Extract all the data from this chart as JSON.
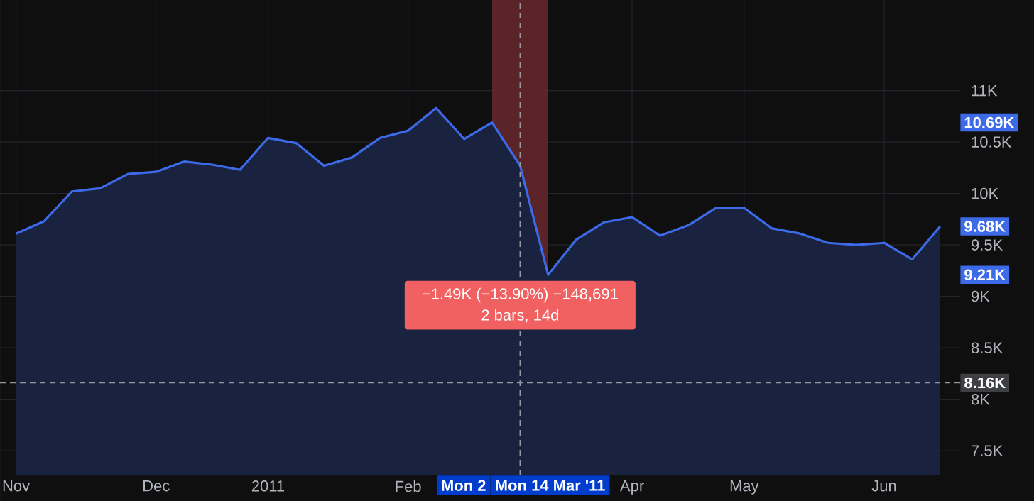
{
  "chart_data": {
    "type": "area",
    "x": [
      "2010-11-01",
      "2010-11-08",
      "2010-11-15",
      "2010-11-22",
      "2010-11-29",
      "2010-12-06",
      "2010-12-13",
      "2010-12-20",
      "2010-12-27",
      "2011-01-03",
      "2011-01-10",
      "2011-01-17",
      "2011-01-24",
      "2011-01-31",
      "2011-02-07",
      "2011-02-14",
      "2011-02-21",
      "2011-02-28",
      "2011-03-07",
      "2011-03-14",
      "2011-03-21",
      "2011-03-28",
      "2011-04-04",
      "2011-04-11",
      "2011-04-18",
      "2011-04-25",
      "2011-05-02",
      "2011-05-09",
      "2011-05-16",
      "2011-05-23",
      "2011-05-30",
      "2011-06-06",
      "2011-06-13",
      "2011-06-20"
    ],
    "series": [
      {
        "color": "#3d6ae8",
        "values": [
          9610,
          9730,
          10020,
          10050,
          10190,
          10210,
          10310,
          10280,
          10230,
          10540,
          10490,
          10270,
          10350,
          10540,
          10610,
          10830,
          10530,
          10690,
          10270,
          9210,
          9550,
          9720,
          9770,
          9590,
          9690,
          9860,
          9860,
          9660,
          9610,
          9520,
          9500,
          9520,
          9360,
          9680
        ]
      }
    ],
    "xlim": [
      "2010-10-28",
      "2011-06-25"
    ],
    "xticks": [
      {
        "value": "2010-11-01",
        "label": "Nov"
      },
      {
        "value": "2010-12-06",
        "label": "Dec"
      },
      {
        "value": "2011-01-03",
        "label": "2011"
      },
      {
        "value": "2011-02-07",
        "label": "Feb"
      },
      {
        "value": "2011-04-04",
        "label": "Apr"
      },
      {
        "value": "2011-05-02",
        "label": "May"
      },
      {
        "value": "2011-06-06",
        "label": "Jun"
      }
    ],
    "ylim": [
      7260,
      11880
    ],
    "yticks": [
      {
        "value": 7500,
        "label": "7.5K"
      },
      {
        "value": 8000,
        "label": "8K"
      },
      {
        "value": 8500,
        "label": "8.5K"
      },
      {
        "value": 9000,
        "label": "9K"
      },
      {
        "value": 9500,
        "label": "9.5K"
      },
      {
        "value": 10000,
        "label": "10K"
      },
      {
        "value": 10500,
        "label": "10.5K"
      },
      {
        "value": 11000,
        "label": "11K"
      }
    ],
    "grid": true,
    "bands": [
      {
        "axis": "x",
        "from": "2011-02-28",
        "to": "2011-03-14",
        "label": "Mon 2",
        "color": "#5a2428"
      }
    ],
    "ref_lines": [
      {
        "axis": "y",
        "value": 8160,
        "label": "8.16K",
        "color": "#9598a1",
        "line_style": "dashed"
      },
      {
        "axis": "x",
        "value": "2011-03-07",
        "label": "Mon 14 Mar '11",
        "color": "#9598a1",
        "line_style": "dashed"
      }
    ],
    "annotations": [
      "−1.49K (−13.90%) −148,691",
      "2 bars, 14d",
      {
        "text": "10.69K",
        "y": 10690
      },
      {
        "text": "9.21K",
        "y": 9210
      },
      {
        "text": "9.68K",
        "y": 9680
      }
    ]
  }
}
